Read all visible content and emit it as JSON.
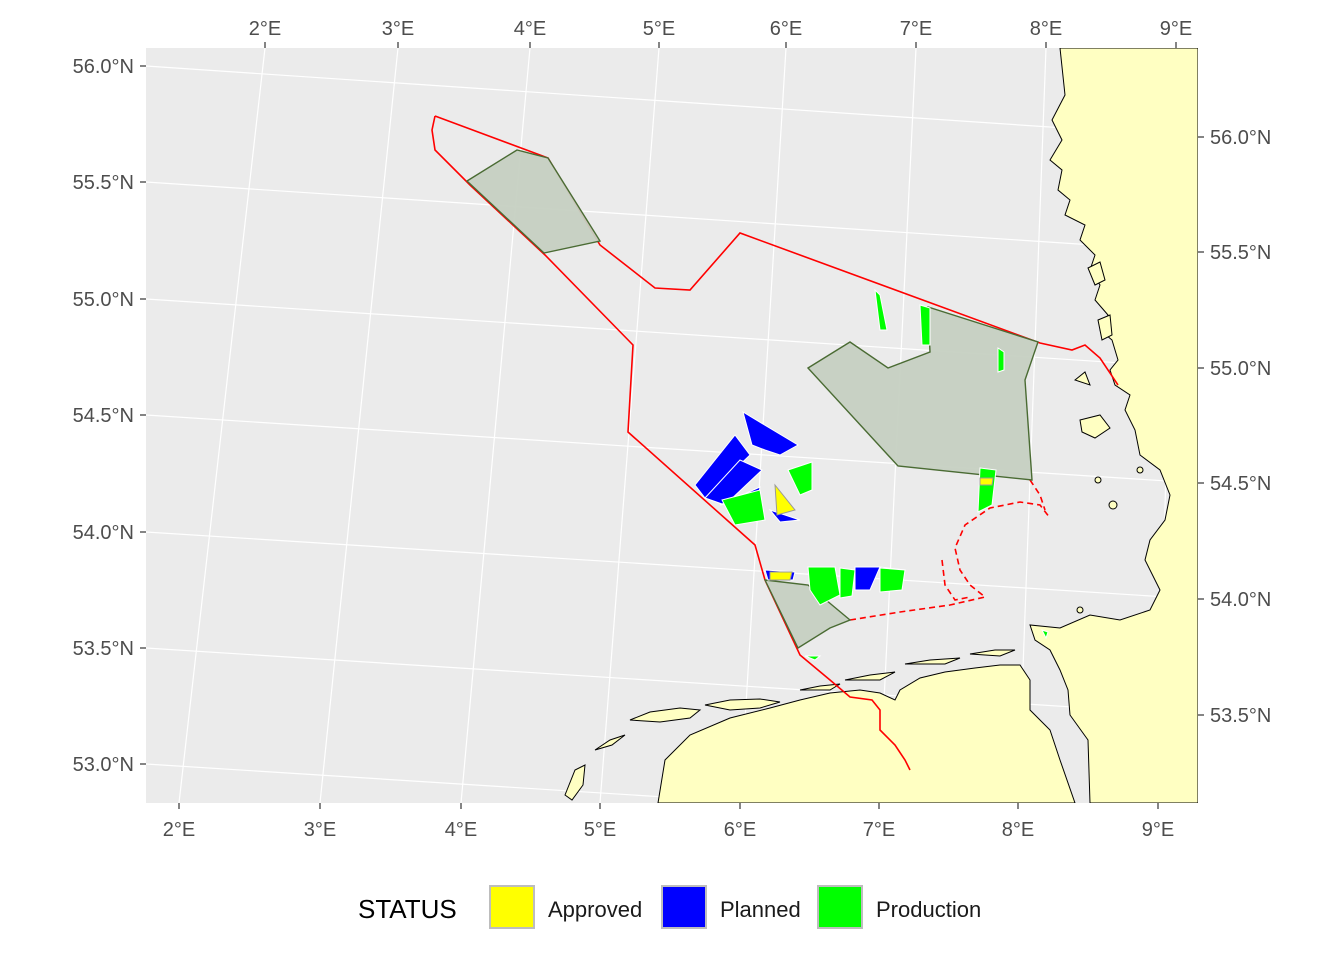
{
  "map": {
    "colors": {
      "panel": "#EBEBEB",
      "grid": "#FFFFFF",
      "land": "#FFFFC2",
      "boundary": "#FF0000",
      "zone_fill": "#C6D0C2",
      "zone_edge": "#4A6B33"
    },
    "axes": {
      "bottom_ticks": [
        "2°E",
        "3°E",
        "4°E",
        "5°E",
        "6°E",
        "7°E",
        "8°E",
        "9°E"
      ],
      "top_ticks": [
        "2°E",
        "3°E",
        "4°E",
        "5°E",
        "6°E",
        "7°E",
        "8°E",
        "9°E"
      ],
      "left_ticks": [
        "56.0°N",
        "55.5°N",
        "55.0°N",
        "54.5°N",
        "54.0°N",
        "53.5°N",
        "53.0°N"
      ],
      "right_ticks": [
        "56.0°N",
        "55.5°N",
        "55.0°N",
        "54.5°N",
        "54.0°N",
        "53.5°N"
      ]
    },
    "legend": {
      "title": "STATUS",
      "placement": "bottom",
      "items": [
        {
          "label": "Approved",
          "color": "#FFFF00"
        },
        {
          "label": "Planned",
          "color": "#0000FF"
        },
        {
          "label": "Production",
          "color": "#00FF00"
        }
      ]
    }
  }
}
